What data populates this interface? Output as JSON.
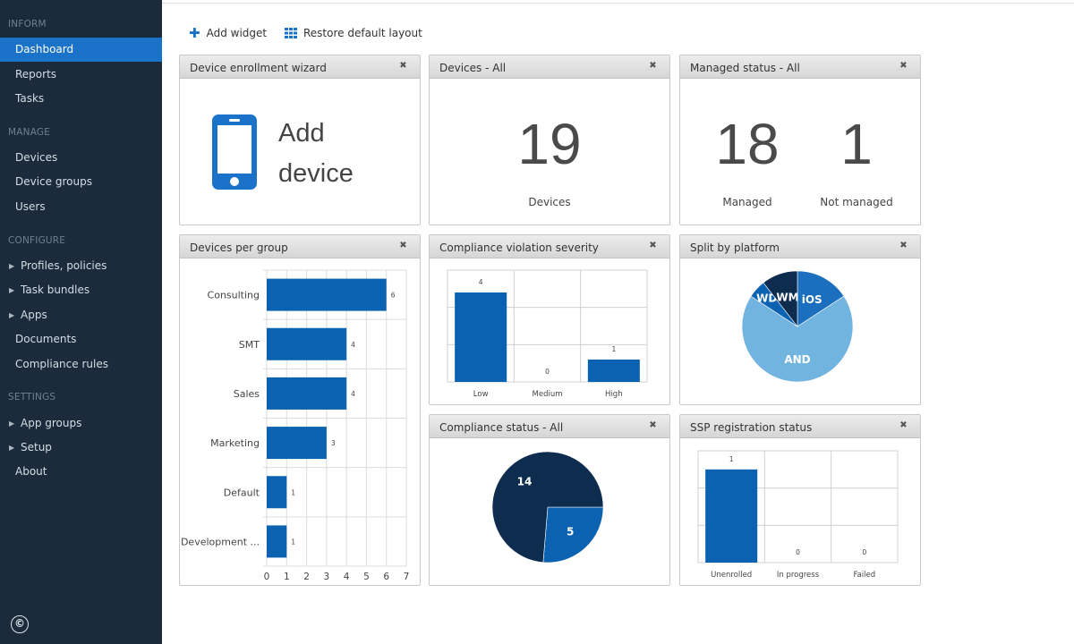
{
  "sidebar": {
    "sections": [
      {
        "title": "INFORM",
        "items": [
          {
            "label": "Dashboard",
            "active": true
          },
          {
            "label": "Reports"
          },
          {
            "label": "Tasks"
          }
        ]
      },
      {
        "title": "MANAGE",
        "items": [
          {
            "label": "Devices"
          },
          {
            "label": "Device groups"
          },
          {
            "label": "Users"
          }
        ]
      },
      {
        "title": "CONFIGURE",
        "items": [
          {
            "label": "Profiles, policies",
            "caret": true
          },
          {
            "label": "Task bundles",
            "caret": true
          },
          {
            "label": "Apps",
            "caret": true
          },
          {
            "label": "Documents"
          },
          {
            "label": "Compliance rules"
          }
        ]
      },
      {
        "title": "SETTINGS",
        "items": [
          {
            "label": "App groups",
            "caret": true
          },
          {
            "label": "Setup",
            "caret": true
          },
          {
            "label": "About"
          }
        ]
      }
    ],
    "copyright_symbol": "©"
  },
  "toolbar": {
    "add_widget_label": "Add widget",
    "restore_label": "Restore default layout"
  },
  "widgets": {
    "enrollment": {
      "title": "Device enrollment wizard",
      "line1": "Add",
      "line2": "device"
    },
    "devices_all": {
      "title": "Devices - All",
      "count": "19",
      "caption": "Devices"
    },
    "managed_status": {
      "title": "Managed status - All",
      "managed_count": "18",
      "managed_label": "Managed",
      "not_managed_count": "1",
      "not_managed_label": "Not managed"
    },
    "devices_per_group": {
      "title": "Devices per group"
    },
    "compliance_violation": {
      "title": "Compliance violation severity"
    },
    "split_platform": {
      "title": "Split by platform"
    },
    "compliance_status": {
      "title": "Compliance status - All"
    },
    "ssp_registration": {
      "title": "SSP registration status"
    }
  },
  "colors": {
    "accent": "#1a73c8",
    "bar": "#0a62b0",
    "navy": "#0e2d4e",
    "light_blue": "#72b4e0",
    "mid_blue": "#1c6fbf"
  },
  "chart_data": [
    {
      "type": "bar",
      "orientation": "horizontal",
      "categories": [
        "Consulting",
        "SMT",
        "Sales",
        "Marketing",
        "Default",
        "Development ..."
      ],
      "values": [
        6,
        4,
        4,
        3,
        1,
        1
      ],
      "xticks": [
        0,
        1,
        2,
        3,
        4,
        5,
        6,
        7
      ],
      "xlim": [
        0,
        7
      ],
      "grid": true
    },
    {
      "type": "bar",
      "categories": [
        "Low",
        "Medium",
        "High"
      ],
      "values": [
        4,
        0,
        1
      ],
      "ylim": [
        0,
        5
      ],
      "grid": true
    },
    {
      "type": "pie",
      "labels": [
        "iOS",
        "AND",
        "WD",
        "WM"
      ],
      "values": [
        3,
        13,
        1,
        2
      ],
      "colors": [
        "#1c6fbf",
        "#72b4e0",
        "#0a62b0",
        "#0e2d4e"
      ]
    },
    {
      "type": "pie",
      "labels": [
        "5",
        "14"
      ],
      "values": [
        5,
        14
      ],
      "colors": [
        "#0a62b0",
        "#0e2d4e"
      ]
    },
    {
      "type": "bar",
      "categories": [
        "Unenrolled",
        "In progress",
        "Failed"
      ],
      "values": [
        1,
        0,
        0
      ],
      "ylim": [
        0,
        1.2
      ],
      "grid": true
    }
  ]
}
